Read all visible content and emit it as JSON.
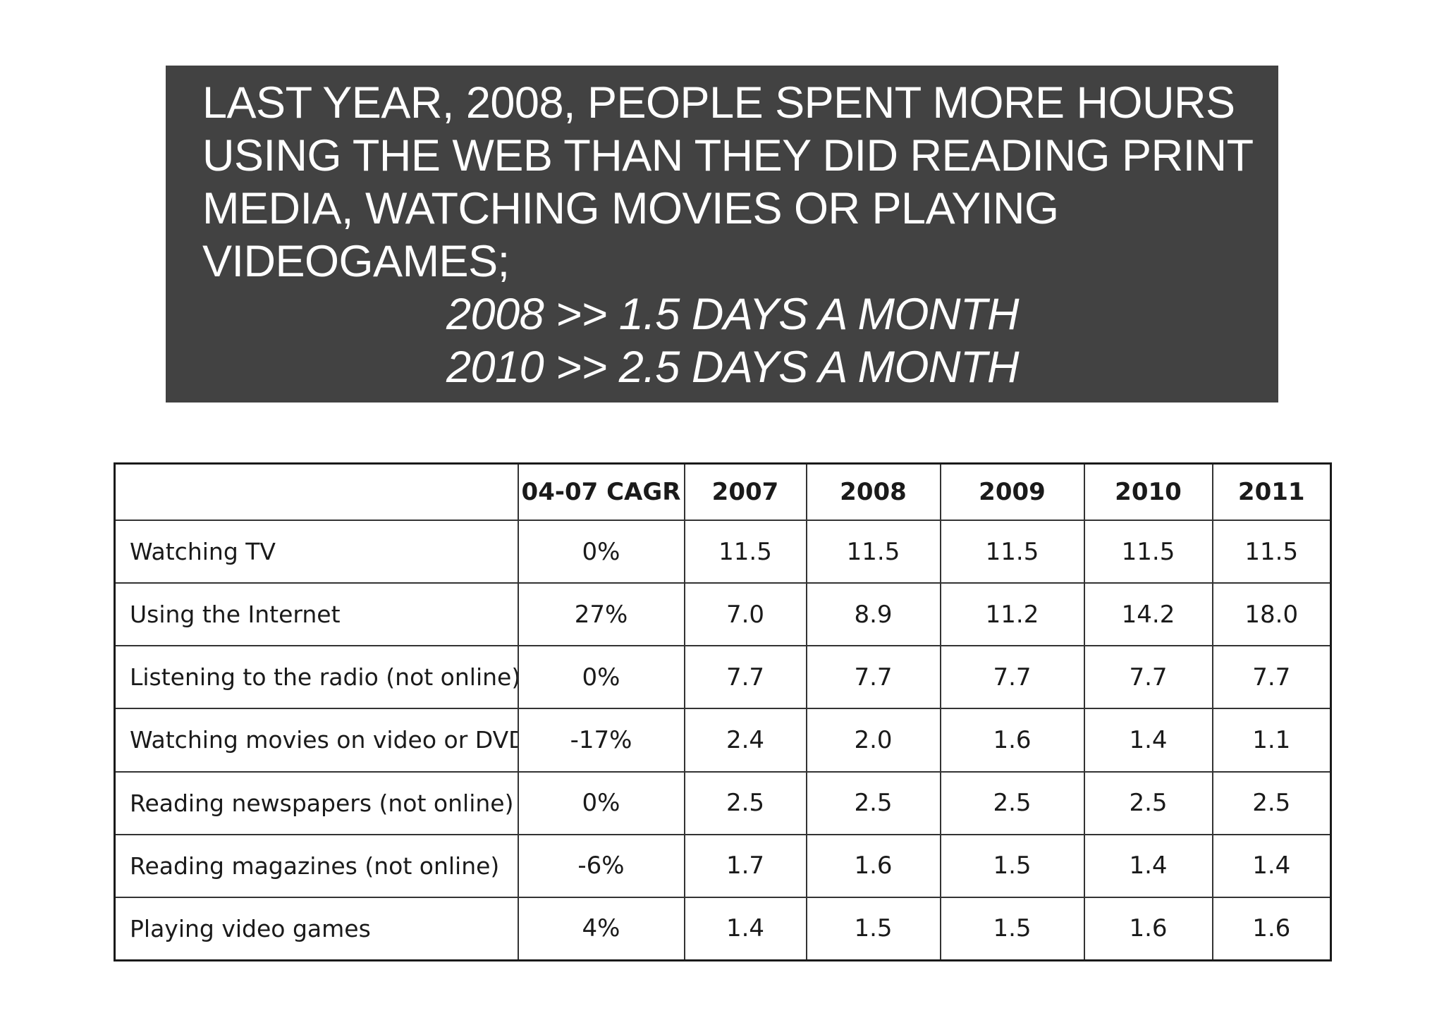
{
  "headline": {
    "lines": [
      "LAST YEAR, 2008, PEOPLE SPENT MORE HOURS",
      "USING THE WEB THAN THEY DID READING PRINT",
      "MEDIA, WATCHING MOVIES OR PLAYING",
      "VIDEOGAMES;"
    ],
    "stats": [
      "2008 >> 1.5 DAYS A MONTH",
      "2010 >> 2.5 DAYS A MONTH"
    ]
  },
  "table": {
    "headers": [
      "",
      "04-07 CAGR",
      "2007",
      "2008",
      "2009",
      "2010",
      "2011"
    ],
    "rows": [
      {
        "activity": "Watching TV",
        "cagr": "0%",
        "values": [
          "11.5",
          "11.5",
          "11.5",
          "11.5",
          "11.5"
        ]
      },
      {
        "activity": "Using the Internet",
        "cagr": "27%",
        "values": [
          "7.0",
          "8.9",
          "11.2",
          "14.2",
          "18.0"
        ]
      },
      {
        "activity": "Listening to the radio (not online)",
        "cagr": "0%",
        "values": [
          "7.7",
          "7.7",
          "7.7",
          "7.7",
          "7.7"
        ]
      },
      {
        "activity": "Watching movies on video or DVD",
        "cagr": "-17%",
        "values": [
          "2.4",
          "2.0",
          "1.6",
          "1.4",
          "1.1"
        ]
      },
      {
        "activity": "Reading newspapers (not online)",
        "cagr": "0%",
        "values": [
          "2.5",
          "2.5",
          "2.5",
          "2.5",
          "2.5"
        ]
      },
      {
        "activity": "Reading magazines (not online)",
        "cagr": "-6%",
        "values": [
          "1.7",
          "1.6",
          "1.5",
          "1.4",
          "1.4"
        ]
      },
      {
        "activity": "Playing video games",
        "cagr": "4%",
        "values": [
          "1.4",
          "1.5",
          "1.5",
          "1.6",
          "1.6"
        ]
      }
    ]
  }
}
